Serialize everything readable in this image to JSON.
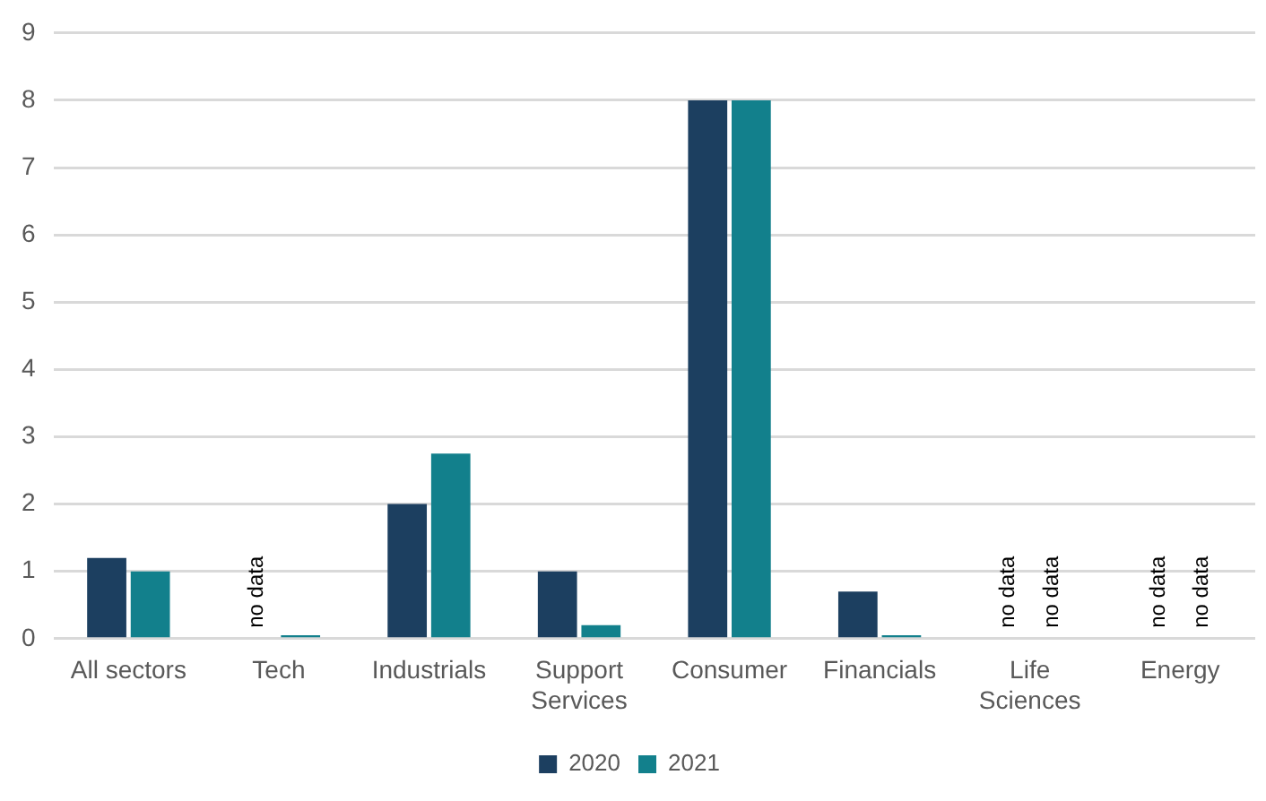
{
  "chart_data": {
    "type": "bar",
    "categories": [
      "All sectors",
      "Tech",
      "Industrials",
      "Support Services",
      "Consumer",
      "Financials",
      "Life Sciences",
      "Energy"
    ],
    "series": [
      {
        "name": "2020",
        "color": "#1c3f60",
        "values": [
          1.2,
          null,
          2.0,
          1.0,
          8.0,
          0.7,
          null,
          null
        ],
        "value_labels": [
          null,
          "no data",
          null,
          null,
          null,
          null,
          "no data",
          "no data"
        ]
      },
      {
        "name": "2021",
        "color": "#12808c",
        "values": [
          1.0,
          0.05,
          2.75,
          0.2,
          8.0,
          0.05,
          null,
          null
        ],
        "value_labels": [
          null,
          null,
          null,
          null,
          null,
          null,
          "no data",
          "no data"
        ]
      }
    ],
    "ylim": [
      0,
      9
    ],
    "yticks": [
      0,
      1,
      2,
      3,
      4,
      5,
      6,
      7,
      8,
      9
    ],
    "grid": "y",
    "legend": "bottom"
  }
}
